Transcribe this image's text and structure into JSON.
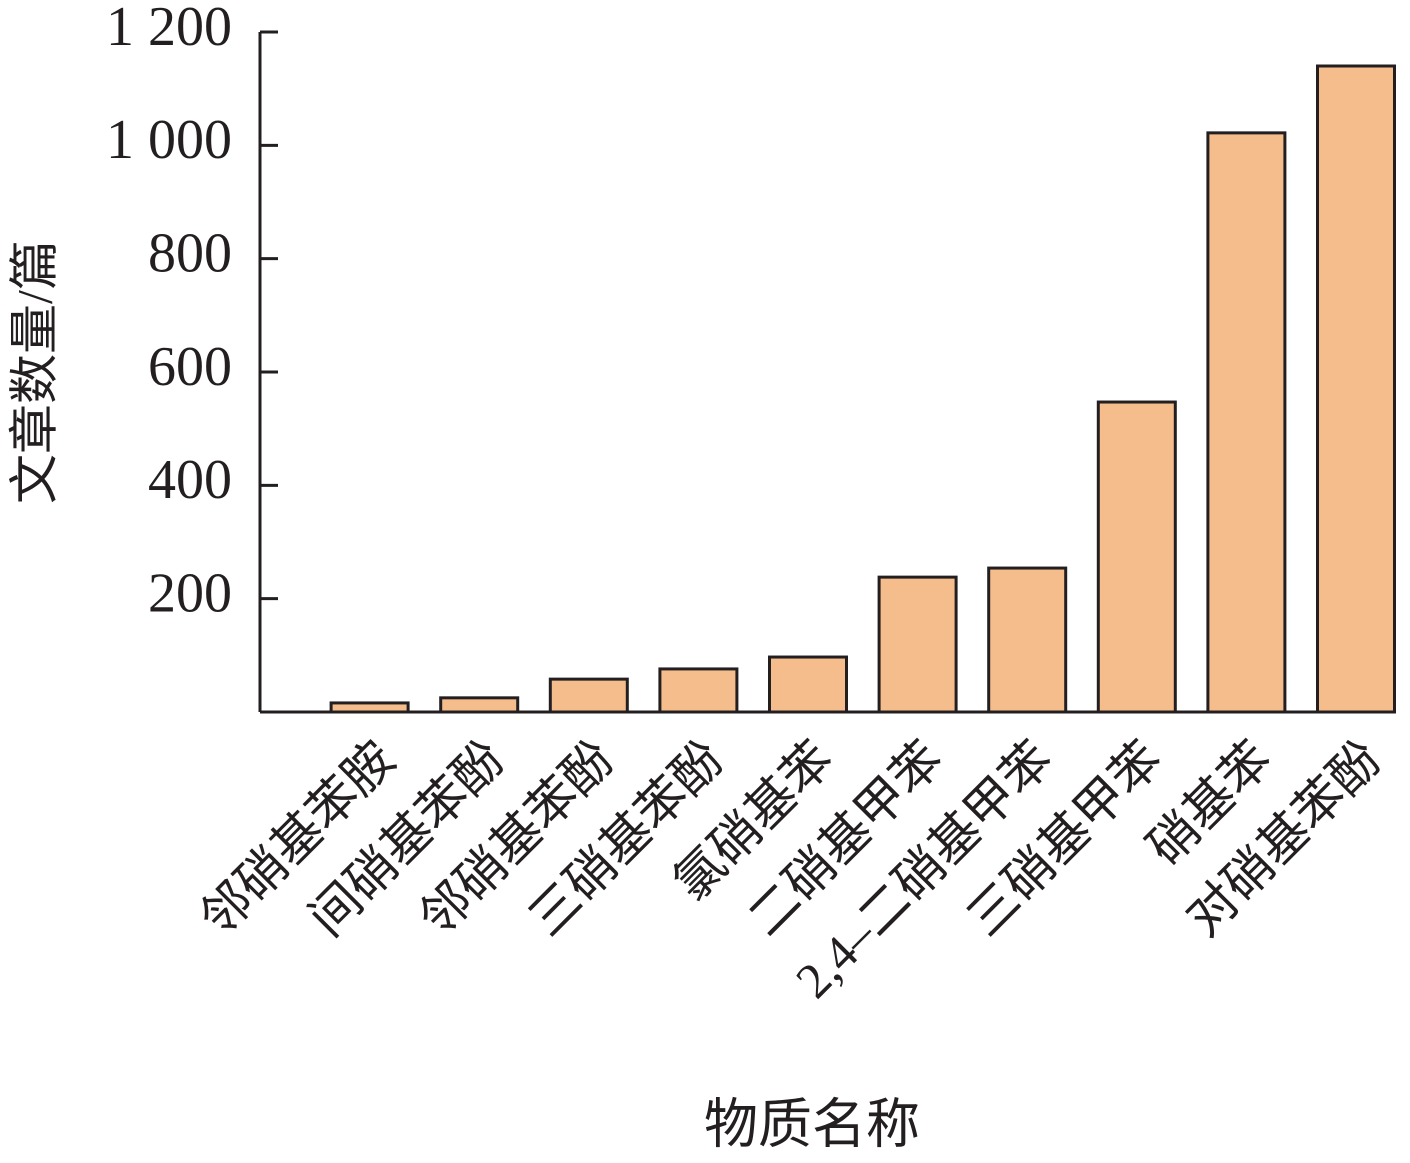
{
  "chart_data": {
    "type": "bar",
    "x_label": "物质名称",
    "y_label": "文章数量/篇",
    "categories": [
      "邻硝基苯胺",
      "间硝基苯酚",
      "邻硝基苯酚",
      "三硝基苯酚",
      "氯硝基苯",
      "二硝基甲苯",
      "2,4–二硝基甲苯",
      "三硝基甲苯",
      "硝基苯",
      "对硝基苯酚"
    ],
    "values": [
      16,
      25,
      58,
      76,
      97,
      238,
      254,
      547,
      1022,
      1140
    ],
    "color": "#f5bd8c",
    "ylim": [
      0,
      1200
    ],
    "yticks": [
      200,
      400,
      600,
      800,
      {
        "value": 1000,
        "label": "1 000"
      },
      {
        "value": 1200,
        "label": "1 200"
      }
    ]
  }
}
